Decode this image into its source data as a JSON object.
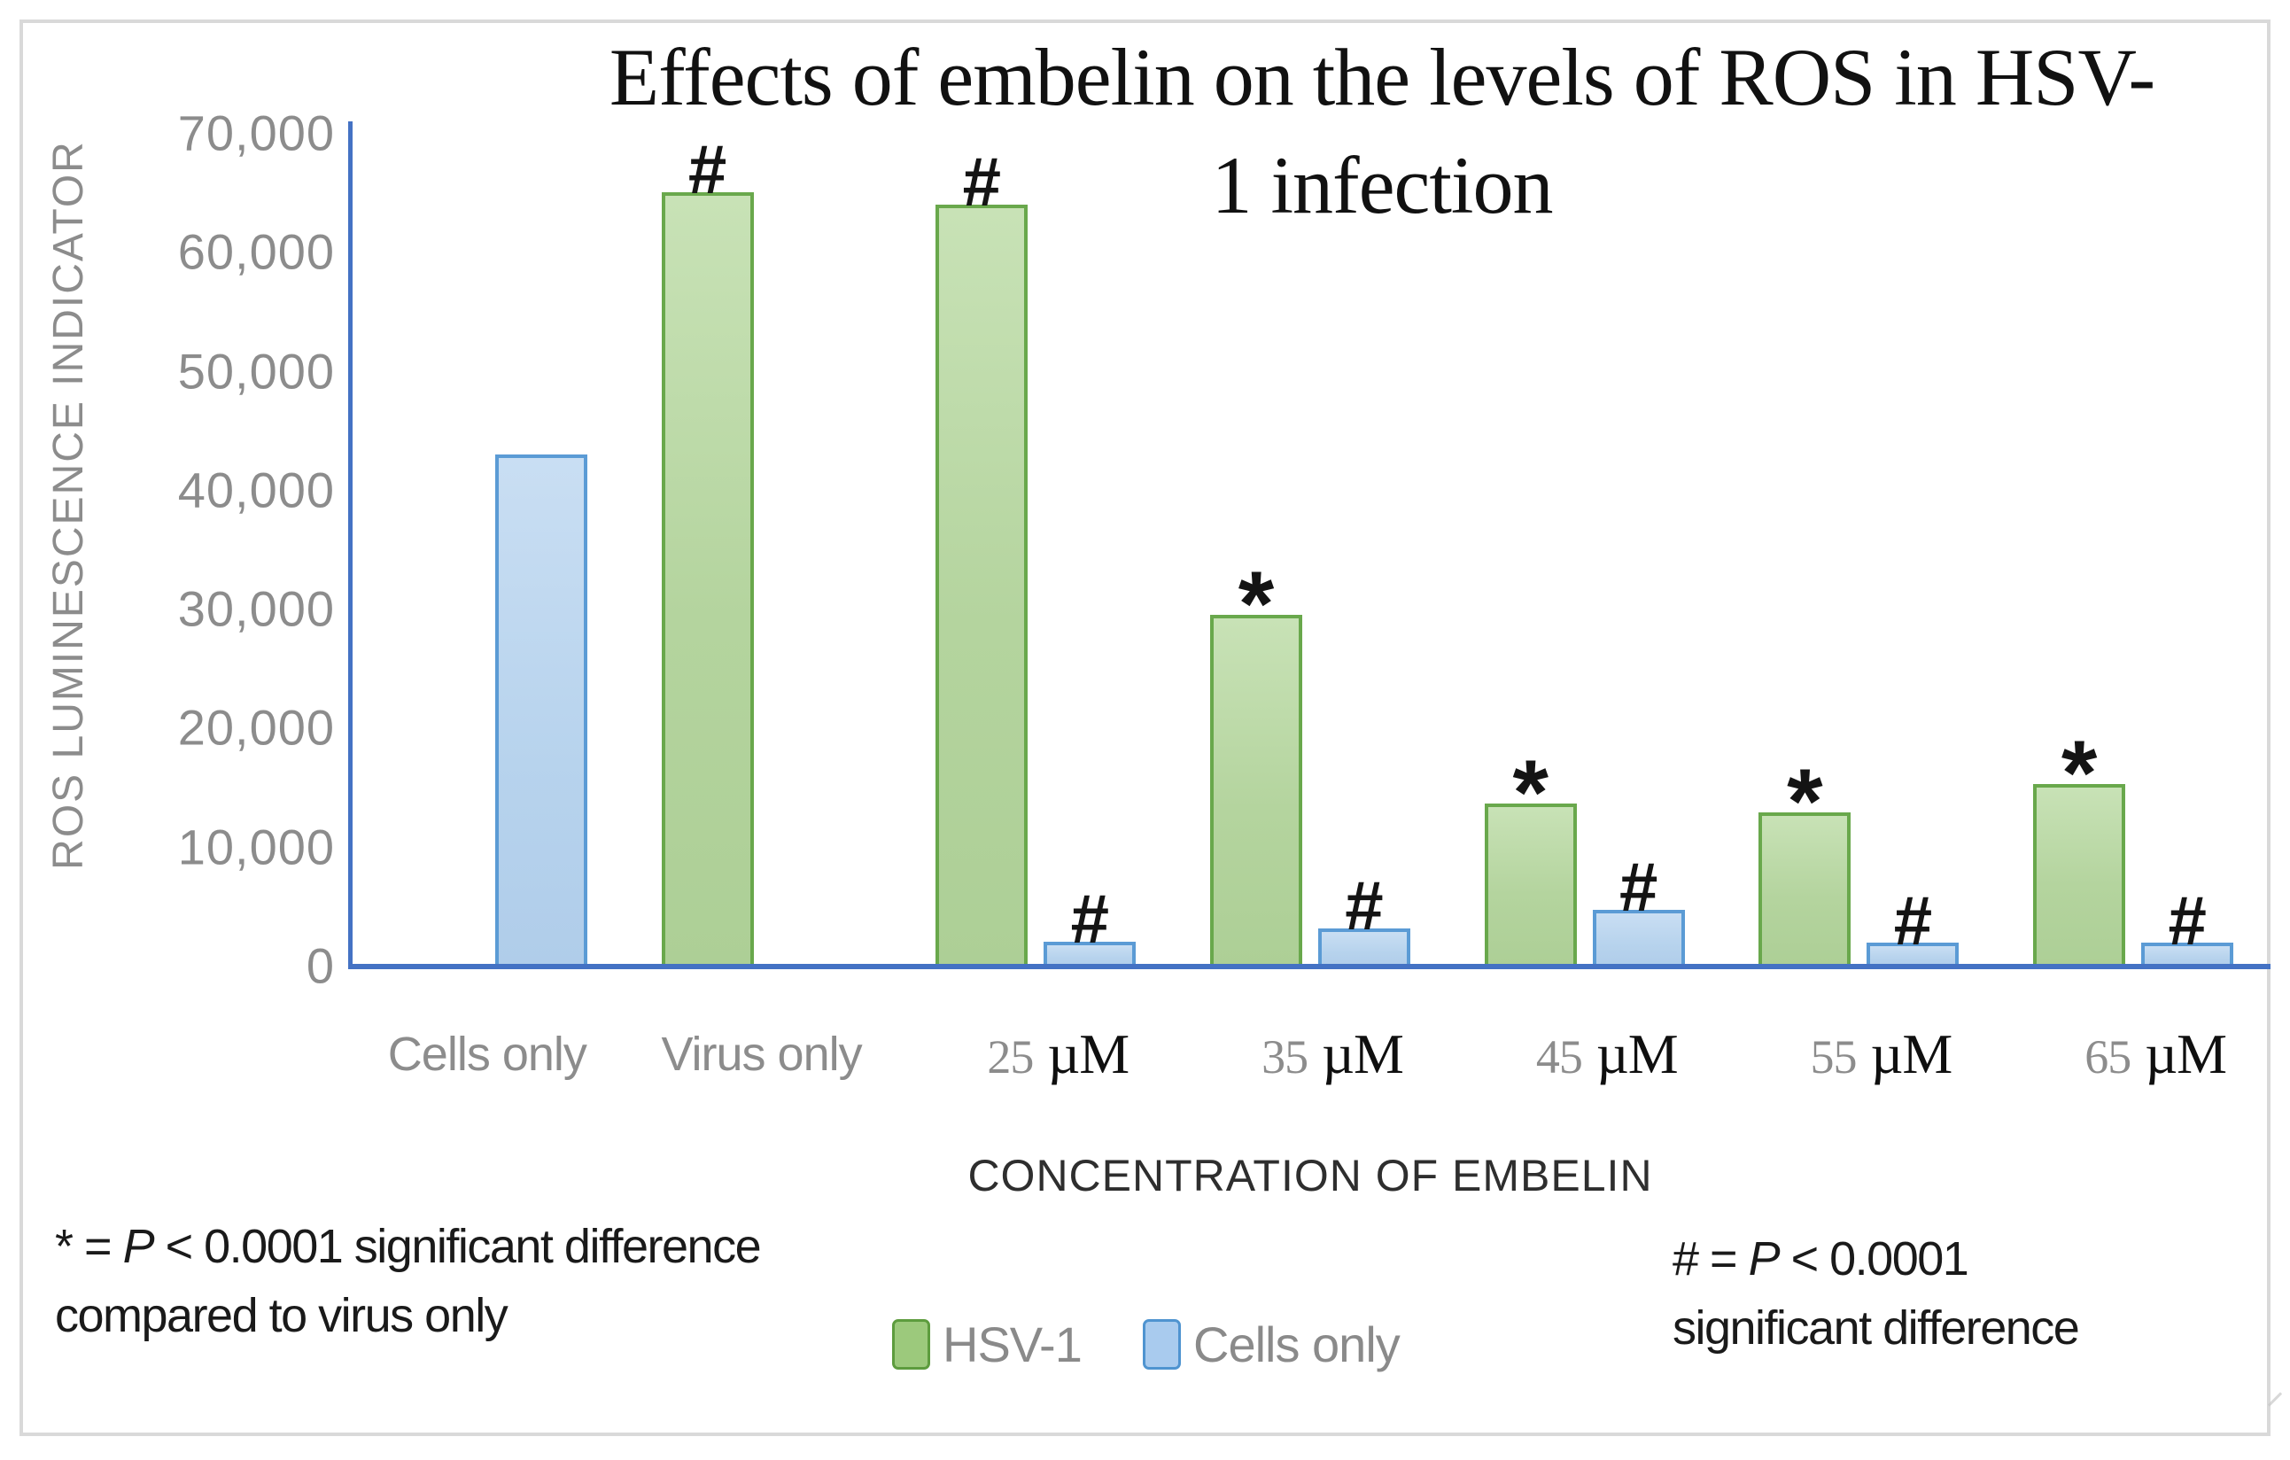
{
  "title": {
    "line1": "Effects of embelin on the levels of ROS in HSV-",
    "line2": "1 infection"
  },
  "y_axis": {
    "label": "ROS LUMINESCENCE INDICATOR"
  },
  "x_axis": {
    "title": "CONCENTRATION OF EMBELIN"
  },
  "legend": {
    "items": [
      {
        "label": "HSV-1",
        "swatch": "green"
      },
      {
        "label": "Cells only",
        "swatch": "blue"
      }
    ]
  },
  "annotations": {
    "left": {
      "pre": "* = ",
      "p": "P",
      "post": " < 0.0001 significant difference",
      "line2": "compared to virus only"
    },
    "right": {
      "pre": "# = ",
      "p": "P",
      "post": " < 0.0001",
      "line2": "significant difference"
    }
  },
  "colors": {
    "axis_blue": "#4472c4",
    "green_fill": "#b5d5a0",
    "green_border": "#69a84c",
    "blue_fill": "#bad5ee",
    "blue_border": "#5b9bd5",
    "tick_gray": "#8c8c8c",
    "frame_gray": "#d9d9d9"
  },
  "chart_data": {
    "type": "bar",
    "title": "Effects of embelin on the levels of ROS in HSV-1 infection",
    "xlabel": "CONCENTRATION OF EMBELIN",
    "ylabel": "ROS LUMINESCENCE INDICATOR",
    "ylim": [
      0,
      70000
    ],
    "grid": false,
    "legend_position": "bottom",
    "categories": [
      "Cells only",
      "Virus only",
      "25 µM",
      "35 µM",
      "45 µM",
      "55 µM",
      "65 µM"
    ],
    "y_ticks": [
      {
        "label": "70,000",
        "value": 70000
      },
      {
        "label": "60,000",
        "value": 60000
      },
      {
        "label": "50,000",
        "value": 50000
      },
      {
        "label": "40,000",
        "value": 40000
      },
      {
        "label": "30,000",
        "value": 30000
      },
      {
        "label": "20,000",
        "value": 20000
      },
      {
        "label": "10,000",
        "value": 10000
      },
      {
        "label": "0",
        "value": 0
      }
    ],
    "series": [
      {
        "name": "HSV-1",
        "color": "#b5d5a0",
        "border": "#69a84c",
        "values": [
          null,
          65000,
          64000,
          29500,
          13600,
          12900,
          15300
        ],
        "markers": [
          null,
          "#",
          "#",
          "*",
          "*",
          "*",
          "*"
        ]
      },
      {
        "name": "Cells only",
        "color": "#bad5ee",
        "border": "#5b9bd5",
        "values": [
          43000,
          null,
          2000,
          3100,
          4700,
          1900,
          1900
        ],
        "markers": [
          null,
          null,
          "#",
          "#",
          "#",
          "#",
          "#"
        ]
      }
    ],
    "significance_notes": {
      "star": "* = P < 0.0001 significant difference compared to virus only",
      "hash": "# = P < 0.0001 significant difference"
    }
  }
}
